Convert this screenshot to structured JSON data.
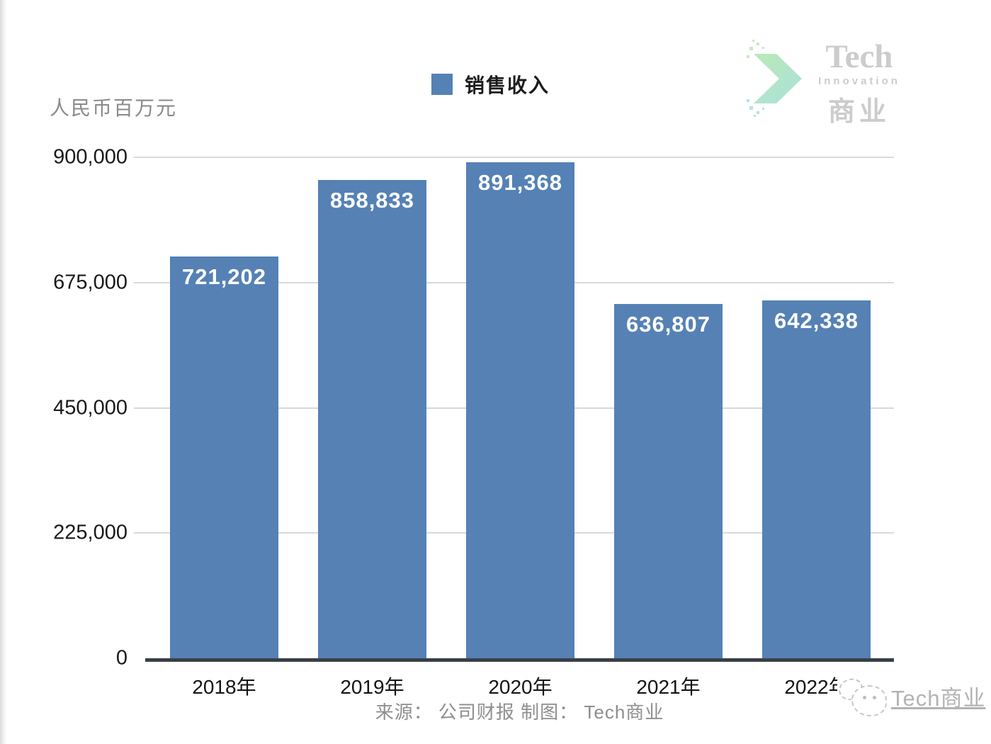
{
  "chart": {
    "y_axis_title": "人民币百万元",
    "legend_label": "销售收入"
  },
  "logo": {
    "title": "Tech",
    "subtitle": "Innovation",
    "cn": "商业"
  },
  "watermark": {
    "icon": "wechat-chat-bubbles-icon",
    "label": "Tech商业"
  },
  "source_note": "来源： 公司财报 制图： Tech商业",
  "colors": {
    "bar": "#5581b5",
    "grid": "#d9d9d9",
    "axis": "#3a3f46",
    "gray_text": "#8a8a8a",
    "logo_gray": "#cacaca",
    "chevron_green": "#9fe09a",
    "chevron_teal": "#8fd8d2"
  },
  "chart_data": {
    "type": "bar",
    "title": "",
    "series_name": "销售收入",
    "categories": [
      "2018年",
      "2019年",
      "2020年",
      "2021年",
      "2022年"
    ],
    "values": [
      721202,
      858833,
      891368,
      636807,
      642338
    ],
    "value_labels": [
      "721,202",
      "858,833",
      "891,368",
      "636,807",
      "642,338"
    ],
    "xlabel": "",
    "ylabel": "人民币百万元",
    "ylim": [
      0,
      900000
    ],
    "yticks": [
      0,
      225000,
      450000,
      675000,
      900000
    ],
    "ytick_labels": [
      "0",
      "225,000",
      "450,000",
      "675,000",
      "900,000"
    ],
    "grid": true,
    "legend_position": "top",
    "bar_color": "#5581b5",
    "source": "来源： 公司财报 制图： Tech商业"
  }
}
